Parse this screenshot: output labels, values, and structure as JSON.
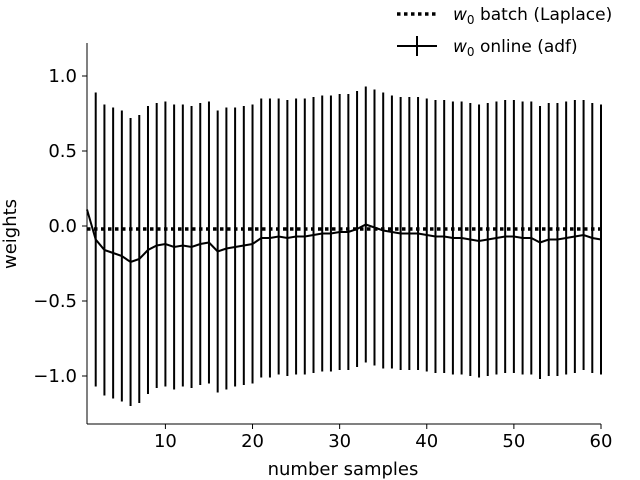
{
  "chart_data": {
    "type": "line",
    "xlabel": "number samples",
    "ylabel": "weights",
    "xlim": [
      1,
      60
    ],
    "ylim": [
      -1.32,
      1.22
    ],
    "xticks": [
      10,
      20,
      30,
      40,
      50,
      60
    ],
    "yticks": [
      1.0,
      0.5,
      0.0,
      -0.5,
      -1.0
    ],
    "ytick_labels": [
      "1.0",
      "0.5",
      "0.0",
      "−0.5",
      "−1.0"
    ],
    "grid": false,
    "legend_position": "top-right",
    "legend": [
      {
        "text": "batch (Laplace)",
        "symbol": "w",
        "subscript": "0",
        "style": "dotted"
      },
      {
        "text": "online (adf)",
        "symbol": "w",
        "subscript": "0",
        "style": "errorbar"
      }
    ],
    "series": [
      {
        "style": "dotted",
        "color": "#000000",
        "x": [
          1,
          60
        ],
        "y": [
          -0.02,
          -0.02
        ]
      },
      {
        "style": "errorbar",
        "color": "#000000",
        "x": [
          1,
          2,
          3,
          4,
          5,
          6,
          7,
          8,
          9,
          10,
          11,
          12,
          13,
          14,
          15,
          16,
          17,
          18,
          19,
          20,
          21,
          22,
          23,
          24,
          25,
          26,
          27,
          28,
          29,
          30,
          31,
          32,
          33,
          34,
          35,
          36,
          37,
          38,
          39,
          40,
          41,
          42,
          43,
          44,
          45,
          46,
          47,
          48,
          49,
          50,
          51,
          52,
          53,
          54,
          55,
          56,
          57,
          58,
          59,
          60
        ],
        "y": [
          0.11,
          -0.09,
          -0.16,
          -0.18,
          -0.2,
          -0.24,
          -0.22,
          -0.16,
          -0.13,
          -0.12,
          -0.14,
          -0.13,
          -0.14,
          -0.12,
          -0.11,
          -0.17,
          -0.15,
          -0.14,
          -0.13,
          -0.12,
          -0.08,
          -0.08,
          -0.07,
          -0.08,
          -0.07,
          -0.07,
          -0.06,
          -0.05,
          -0.05,
          -0.04,
          -0.04,
          -0.02,
          0.01,
          -0.01,
          -0.03,
          -0.04,
          -0.05,
          -0.05,
          -0.05,
          -0.06,
          -0.07,
          -0.07,
          -0.08,
          -0.08,
          -0.09,
          -0.1,
          -0.09,
          -0.08,
          -0.07,
          -0.07,
          -0.08,
          -0.08,
          -0.11,
          -0.09,
          -0.09,
          -0.08,
          -0.07,
          -0.06,
          -0.08,
          -0.09
        ],
        "err": [
          null,
          0.98,
          0.97,
          0.97,
          0.97,
          0.96,
          0.96,
          0.96,
          0.95,
          0.95,
          0.95,
          0.94,
          0.94,
          0.94,
          0.94,
          0.94,
          0.94,
          0.93,
          0.93,
          0.93,
          0.93,
          0.93,
          0.92,
          0.92,
          0.92,
          0.92,
          0.92,
          0.92,
          0.92,
          0.92,
          0.92,
          0.92,
          0.92,
          0.92,
          0.92,
          0.91,
          0.91,
          0.91,
          0.91,
          0.91,
          0.91,
          0.91,
          0.91,
          0.91,
          0.91,
          0.91,
          0.91,
          0.91,
          0.91,
          0.91,
          0.91,
          0.91,
          0.91,
          0.91,
          0.91,
          0.91,
          0.91,
          0.9,
          0.9,
          0.9
        ]
      }
    ]
  }
}
